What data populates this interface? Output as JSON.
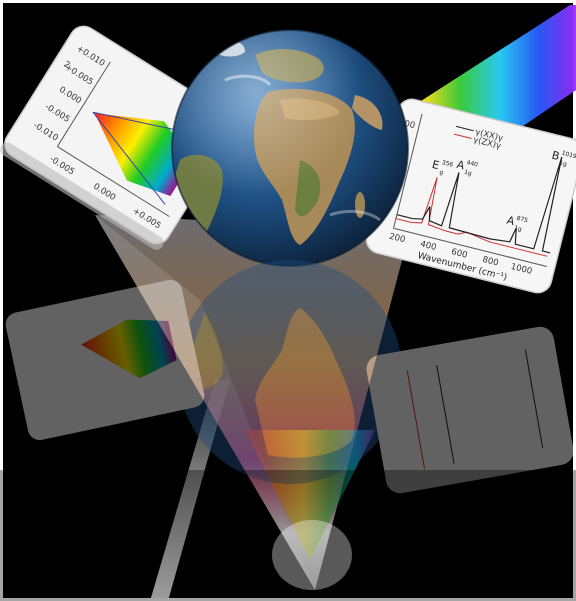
{
  "left_card": {
    "y_ticks": [
      "+0.010",
      "+0.005",
      "0.000",
      "-0.005",
      "-0.010"
    ],
    "x_ticks": [
      "-0.005",
      "0.000",
      "+0.005"
    ],
    "corner_mark": "2"
  },
  "right_card": {
    "legend": [
      "γ(XX)γ",
      "γ(ZX)γ"
    ],
    "y_tick": "6000",
    "x_ticks": [
      "200",
      "400",
      "600",
      "800",
      "1000"
    ],
    "x_label": "Wavenumber (cm⁻¹)",
    "peaks": [
      {
        "label": "E",
        "sub": "g",
        "value": "356"
      },
      {
        "label": "A",
        "sub": "1g",
        "value": "440"
      },
      {
        "label": "A",
        "sub": "1g",
        "value": "875"
      },
      {
        "label": "B",
        "sub": "1g",
        "value": "1019"
      }
    ],
    "colors": {
      "red_series": "#d03030",
      "black_series": "#222222"
    }
  },
  "scene_colors": {
    "background": "#000000",
    "ocean": "#1e4f82",
    "land": "#a88a5a"
  }
}
